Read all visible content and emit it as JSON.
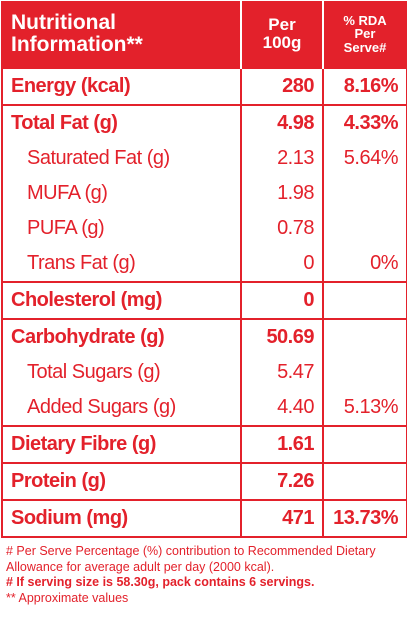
{
  "header": {
    "name": "Nutritional Information**",
    "per_100g": "Per 100g",
    "rda": "% RDA Per Serve#"
  },
  "groups": [
    {
      "rows": [
        {
          "name": "Energy (kcal)",
          "per_100g": "280",
          "rda": "8.16%"
        }
      ]
    },
    {
      "rows": [
        {
          "name": "Total Fat (g)",
          "per_100g": "4.98",
          "rda": "4.33%"
        },
        {
          "name": "Saturated Fat (g)",
          "per_100g": "2.13",
          "rda": "5.64%"
        },
        {
          "name": "MUFA (g)",
          "per_100g": "1.98"
        },
        {
          "name": "PUFA (g)",
          "per_100g": "0.78"
        },
        {
          "name": "Trans Fat (g)",
          "per_100g": "0",
          "rda": "0%"
        }
      ]
    },
    {
      "rows": [
        {
          "name": "Cholesterol (mg)",
          "per_100g": "0"
        }
      ]
    },
    {
      "rows": [
        {
          "name": "Carbohydrate (g)",
          "per_100g": "50.69"
        },
        {
          "name": "Total Sugars (g)",
          "per_100g": "5.47"
        },
        {
          "name": "Added Sugars (g)",
          "per_100g": "4.40",
          "rda": "5.13%"
        }
      ]
    },
    {
      "rows": [
        {
          "name": "Dietary Fibre (g)",
          "per_100g": "1.61"
        }
      ]
    },
    {
      "rows": [
        {
          "name": "Protein (g)",
          "per_100g": "7.26"
        }
      ]
    },
    {
      "rows": [
        {
          "name": "Sodium (mg)",
          "per_100g": "471",
          "rda": "13.73%"
        }
      ]
    }
  ],
  "footnotes": [
    "# Per Serve Percentage (%) contribution to Recommended Dietary Allowance for average adult per day (2000 kcal).",
    "# If serving size is 58.30g, pack contains 6 servings.",
    "** Approximate values"
  ]
}
